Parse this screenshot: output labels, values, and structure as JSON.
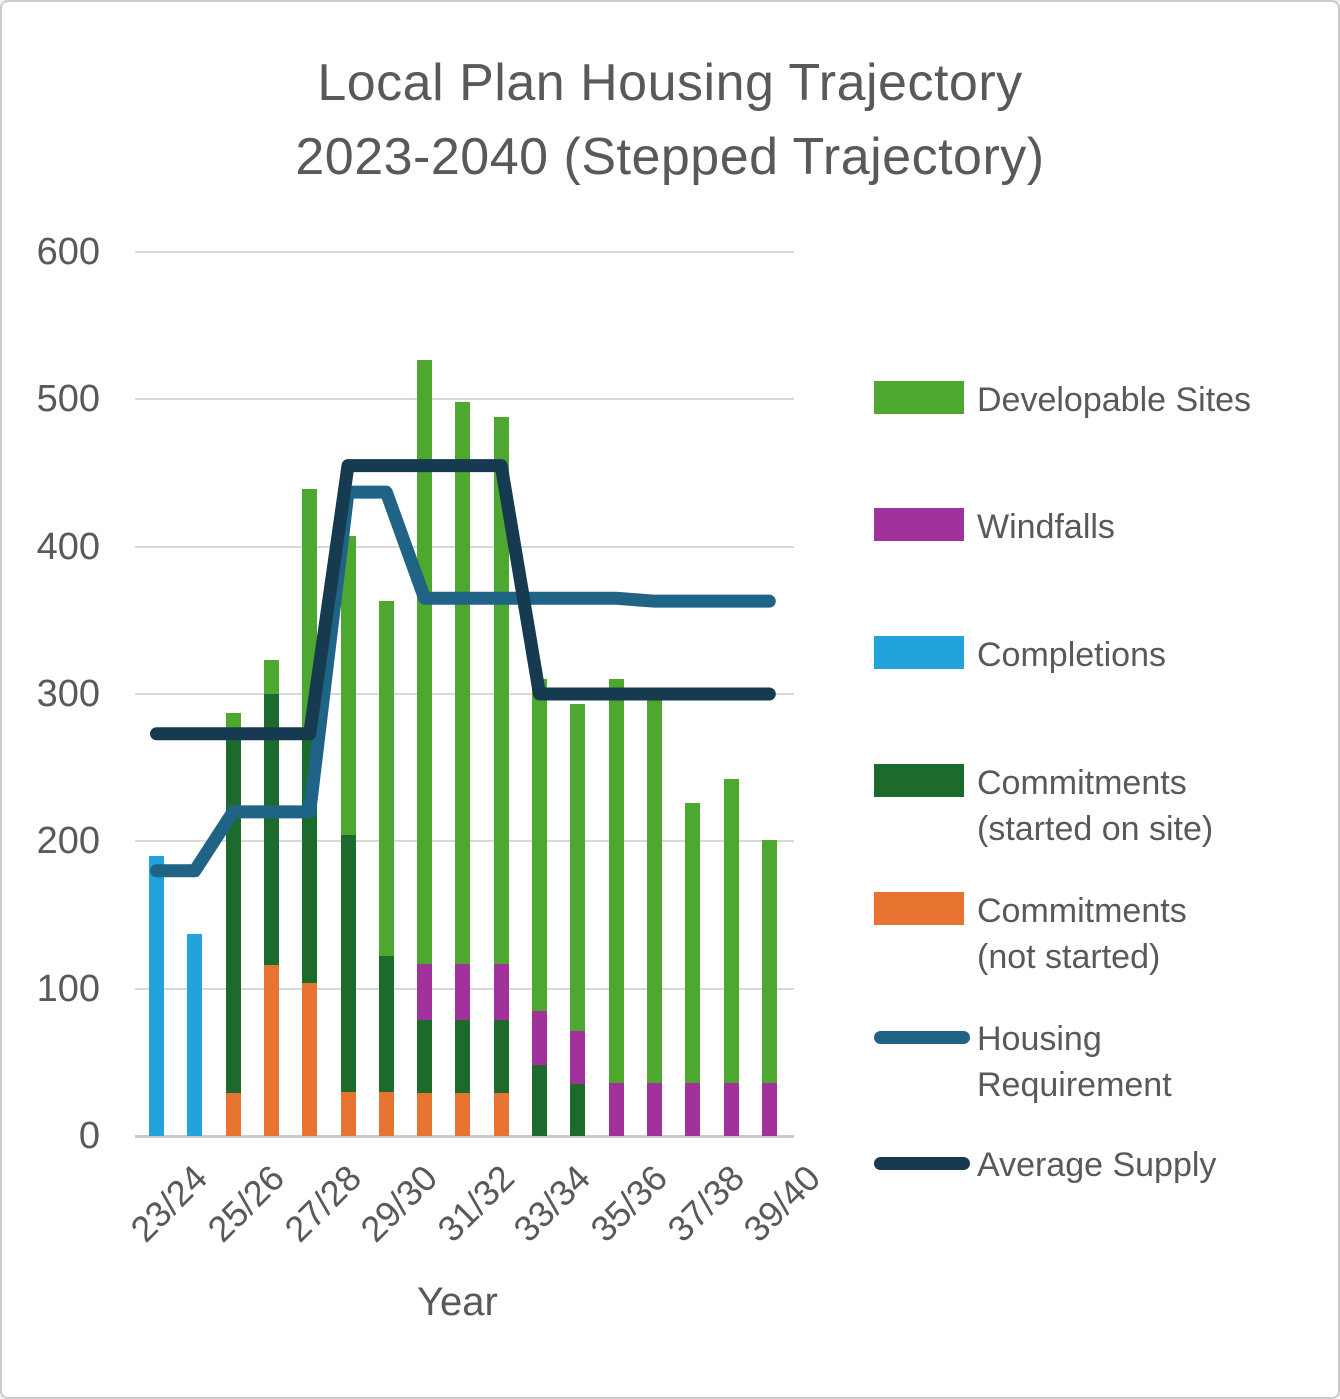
{
  "title": {
    "line1": "Local Plan Housing Trajectory",
    "line2": "2023-2040  (Stepped Trajectory)"
  },
  "colors": {
    "developable_sites": "#4EA72E",
    "windfalls": "#A2329B",
    "completions": "#22A3DC",
    "commitments_started": "#1D6B2C",
    "commitments_not_started": "#E87431",
    "housing_requirement": "#1F6386",
    "average_supply": "#163A50",
    "gridline": "#D9D9D9",
    "axis_line": "#CBCBCB",
    "text": "#595959"
  },
  "chart_data": {
    "type": "bar",
    "stacked": true,
    "title": "Local Plan Housing Trajectory 2023-2040 (Stepped Trajectory)",
    "xlabel": "Year",
    "ylabel": "",
    "ylim": [
      0,
      600
    ],
    "yticks": [
      0,
      100,
      200,
      300,
      400,
      500,
      600
    ],
    "grid": true,
    "legend_position": "right",
    "categories": [
      "23/24",
      "24/25",
      "25/26",
      "26/27",
      "27/28",
      "28/29",
      "29/30",
      "30/31",
      "31/32",
      "32/33",
      "33/34",
      "34/35",
      "35/36",
      "36/37",
      "37/38",
      "38/39",
      "39/40"
    ],
    "xticks": [
      {
        "label": "23/24",
        "index": 0
      },
      {
        "label": "25/26",
        "index": 2
      },
      {
        "label": "27/28",
        "index": 4
      },
      {
        "label": "29/30",
        "index": 6
      },
      {
        "label": "31/32",
        "index": 8
      },
      {
        "label": "33/34",
        "index": 10
      },
      {
        "label": "35/36",
        "index": 12
      },
      {
        "label": "37/38",
        "index": 14
      },
      {
        "label": "39/40",
        "index": 16
      }
    ],
    "bar_series": [
      {
        "name": "Completions",
        "color": "#22A3DC",
        "values": [
          190,
          137,
          0,
          0,
          0,
          0,
          0,
          0,
          0,
          0,
          0,
          0,
          0,
          0,
          0,
          0,
          0
        ]
      },
      {
        "name": "Commitments (not started)",
        "color": "#E87431",
        "values": [
          0,
          0,
          29,
          116,
          104,
          30,
          30,
          29,
          29,
          29,
          0,
          0,
          0,
          0,
          0,
          0,
          0
        ]
      },
      {
        "name": "Commitments (started on site)",
        "color": "#1D6B2C",
        "values": [
          0,
          0,
          243,
          184,
          171,
          174,
          92,
          50,
          50,
          50,
          48,
          35,
          0,
          0,
          0,
          0,
          0
        ]
      },
      {
        "name": "Windfalls",
        "color": "#A2329B",
        "values": [
          0,
          0,
          0,
          0,
          0,
          0,
          0,
          38,
          38,
          38,
          37,
          36,
          36,
          36,
          36,
          36,
          36
        ]
      },
      {
        "name": "Developable Sites",
        "color": "#4EA72E",
        "values": [
          0,
          0,
          15,
          23,
          164,
          203,
          241,
          410,
          381,
          371,
          225,
          222,
          274,
          260,
          190,
          206,
          165
        ]
      }
    ],
    "bar_totals": [
      190,
      137,
      287,
      323,
      439,
      407,
      363,
      527,
      498,
      488,
      310,
      293,
      310,
      296,
      226,
      242,
      201
    ],
    "line_series": [
      {
        "name": "Housing Requirement",
        "color": "#1F6386",
        "values": [
          180,
          180,
          220,
          220,
          220,
          437,
          437,
          365,
          365,
          365,
          365,
          365,
          365,
          363,
          363,
          363,
          363
        ]
      },
      {
        "name": "Average Supply",
        "color": "#163A50",
        "values": [
          273,
          273,
          273,
          273,
          273,
          455,
          455,
          455,
          455,
          455,
          300,
          300,
          300,
          300,
          300,
          300,
          300
        ]
      }
    ]
  },
  "x_axis": {
    "title": "Year"
  },
  "legend": {
    "items": [
      {
        "lines": [
          "Developable Sites"
        ],
        "color": "#4EA72E",
        "shape": "rect",
        "name": "developable-sites"
      },
      {
        "lines": [
          "Windfalls"
        ],
        "color": "#A2329B",
        "shape": "rect",
        "name": "windfalls"
      },
      {
        "lines": [
          "Completions"
        ],
        "color": "#22A3DC",
        "shape": "rect",
        "name": "completions"
      },
      {
        "lines": [
          "Commitments",
          "(started on site)"
        ],
        "color": "#1D6B2C",
        "shape": "rect",
        "name": "commitments-started"
      },
      {
        "lines": [
          "Commitments",
          "(not started)"
        ],
        "color": "#E87431",
        "shape": "rect",
        "name": "commitments-not-started"
      },
      {
        "lines": [
          "Housing",
          "Requirement"
        ],
        "color": "#1F6386",
        "shape": "line",
        "name": "housing-requirement"
      },
      {
        "lines": [
          "Average Supply"
        ],
        "color": "#163A50",
        "shape": "line",
        "name": "average-supply"
      }
    ]
  }
}
